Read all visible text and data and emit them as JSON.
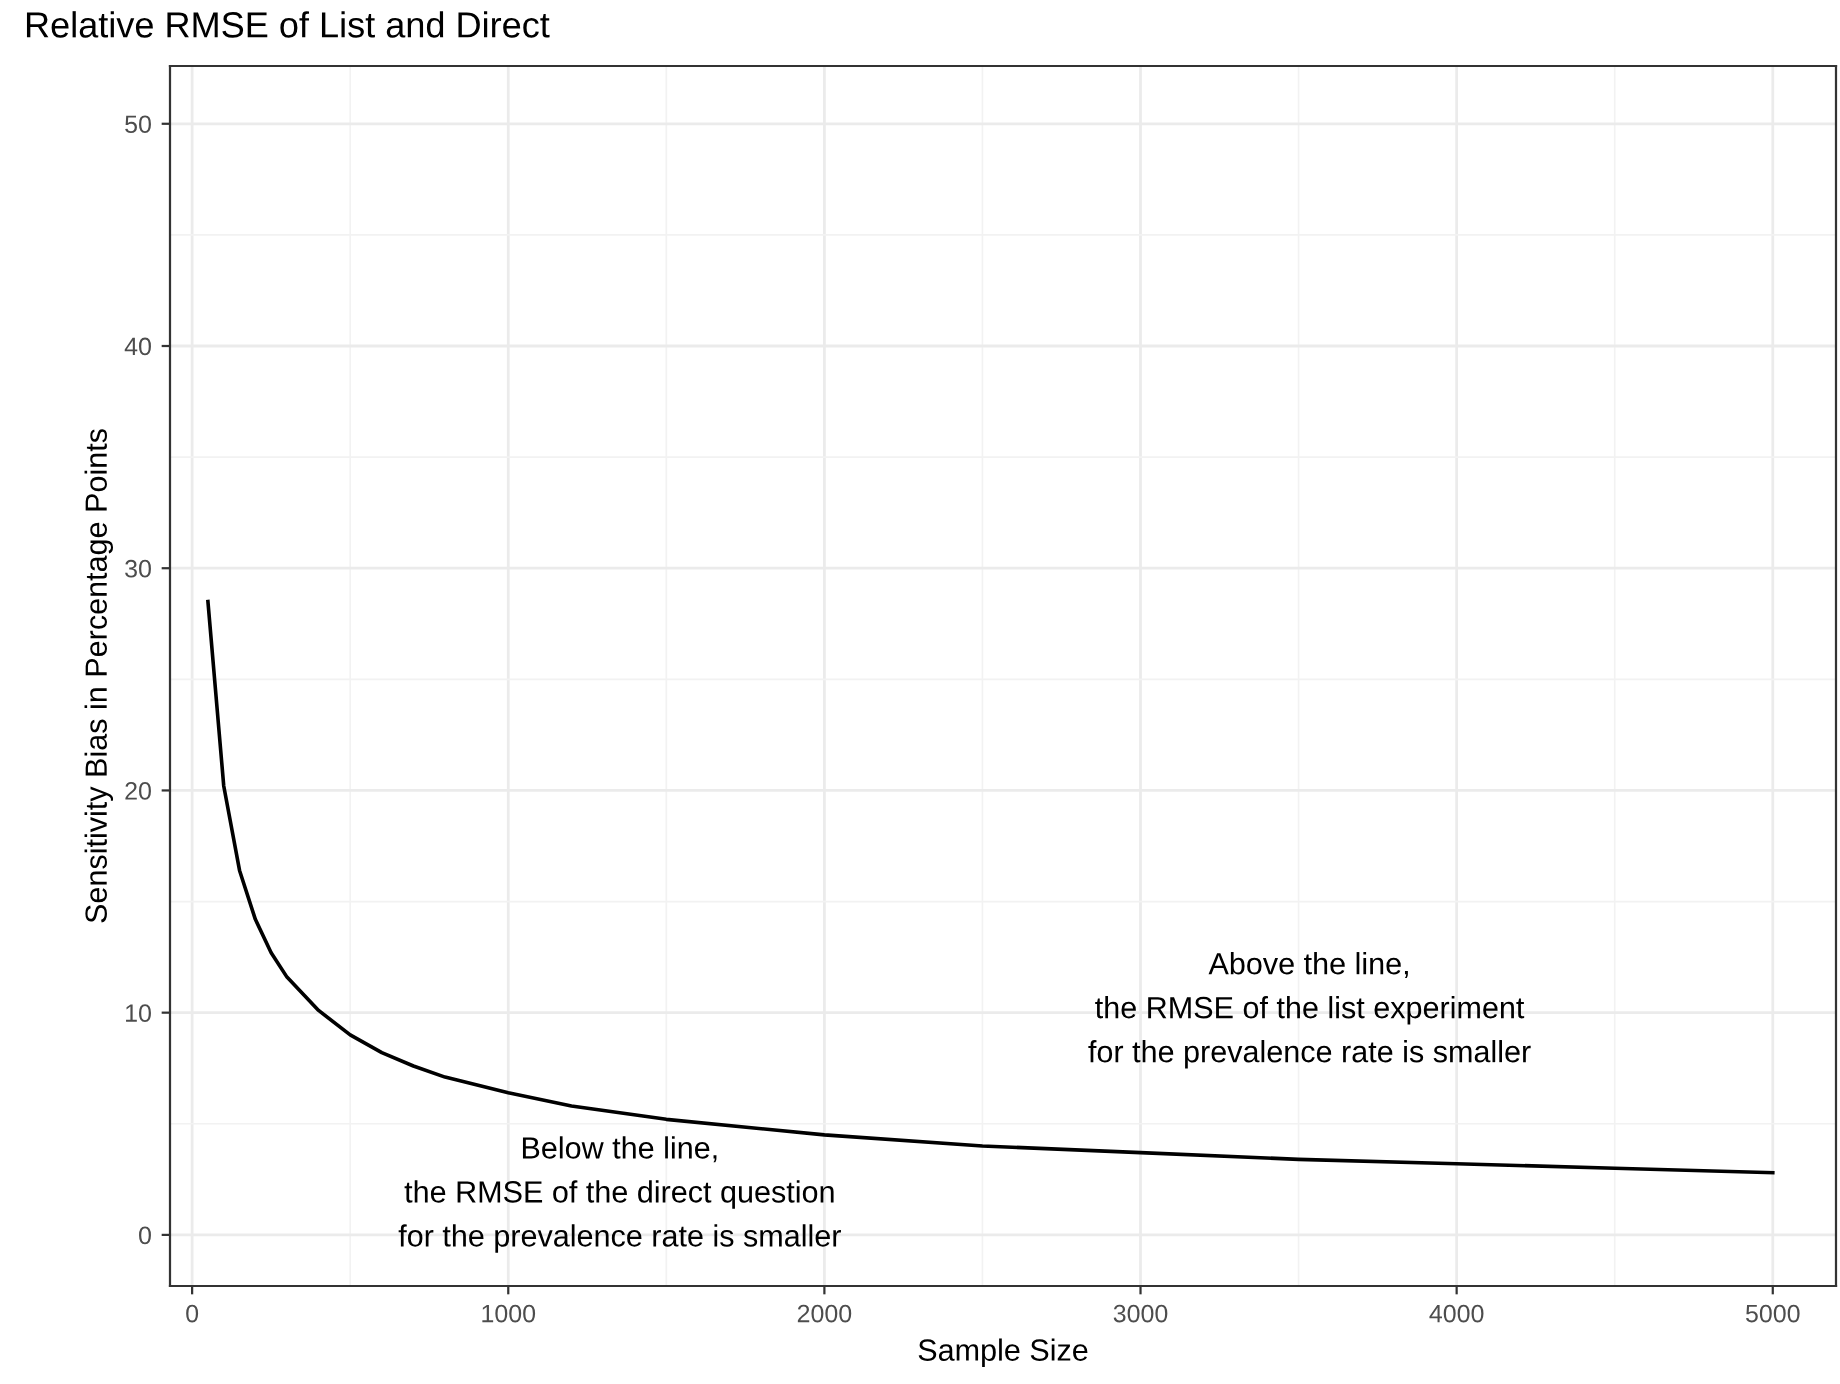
{
  "chart_data": {
    "type": "line",
    "title": "Relative RMSE of List and Direct",
    "xlabel": "Sample Size",
    "ylabel": "Sensitivity Bias in Percentage Points",
    "x": [
      50,
      100,
      150,
      200,
      250,
      300,
      400,
      500,
      600,
      700,
      800,
      1000,
      1200,
      1500,
      2000,
      2500,
      3000,
      3500,
      4000,
      4500,
      5000
    ],
    "series": [
      {
        "color": "#000000",
        "values": [
          28.5,
          20.2,
          16.4,
          14.2,
          12.7,
          11.6,
          10.1,
          9.0,
          8.2,
          7.6,
          7.1,
          6.4,
          5.8,
          5.2,
          4.5,
          4.0,
          3.7,
          3.4,
          3.2,
          3.0,
          2.8
        ]
      }
    ],
    "xlim": [
      -70,
      5200
    ],
    "ylim": [
      -2.3,
      52.6
    ],
    "xticks": [
      0,
      1000,
      2000,
      3000,
      4000,
      5000
    ],
    "yticks": [
      0,
      10,
      20,
      30,
      40,
      50
    ],
    "grid": true,
    "line_style": "solid",
    "marker": "none",
    "annotations": [
      "Above the line,\nthe RMSE of the list experiment\nfor the prevalence rate is smaller",
      "Below the line,\nthe RMSE of the direct question\nfor the prevalence rate is smaller"
    ]
  }
}
